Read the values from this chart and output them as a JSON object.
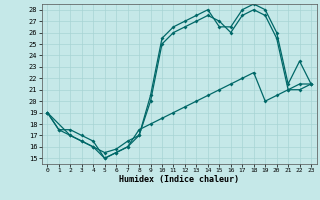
{
  "xlabel": "Humidex (Indice chaleur)",
  "bg_color": "#c5e8e8",
  "line_color": "#006868",
  "grid_color": "#a8d4d4",
  "xlim": [
    -0.5,
    23.5
  ],
  "ylim": [
    14.5,
    28.5
  ],
  "xticks": [
    0,
    1,
    2,
    3,
    4,
    5,
    6,
    7,
    8,
    9,
    10,
    11,
    12,
    13,
    14,
    15,
    16,
    17,
    18,
    19,
    20,
    21,
    22,
    23
  ],
  "yticks": [
    15,
    16,
    17,
    18,
    19,
    20,
    21,
    22,
    23,
    24,
    25,
    26,
    27,
    28
  ],
  "line1_x": [
    0,
    1,
    2,
    3,
    4,
    5,
    6,
    7,
    8,
    9,
    10,
    11,
    12,
    13,
    14,
    15,
    16,
    17,
    18,
    19,
    20,
    21,
    22,
    23
  ],
  "line1_y": [
    19,
    17.5,
    17,
    16.5,
    16,
    15,
    15.5,
    16,
    17,
    20.5,
    25.5,
    26.5,
    27,
    27.5,
    28,
    26.5,
    26.5,
    28,
    28.5,
    28,
    26,
    21.5,
    23.5,
    21.5
  ],
  "line2_x": [
    0,
    2,
    3,
    4,
    5,
    6,
    7,
    8,
    9,
    10,
    11,
    12,
    13,
    14,
    15,
    16,
    17,
    18,
    19,
    20,
    21,
    22,
    23
  ],
  "line2_y": [
    19,
    17,
    16.5,
    16,
    15.5,
    15.8,
    16.5,
    17,
    20,
    25,
    26,
    26.5,
    27,
    27.5,
    27,
    26,
    27.5,
    28,
    27.5,
    25.5,
    21,
    21,
    21.5
  ],
  "line3_x": [
    0,
    1,
    2,
    3,
    4,
    5,
    6,
    7,
    8,
    9,
    10,
    11,
    12,
    13,
    14,
    15,
    16,
    17,
    18,
    19,
    20,
    21,
    22,
    23
  ],
  "line3_y": [
    19,
    17.5,
    17.5,
    17,
    16.5,
    15,
    15.5,
    16,
    17.5,
    18,
    18.5,
    19,
    19.5,
    20,
    20.5,
    21,
    21.5,
    22,
    22.5,
    20,
    20.5,
    21,
    21.5,
    21.5
  ]
}
